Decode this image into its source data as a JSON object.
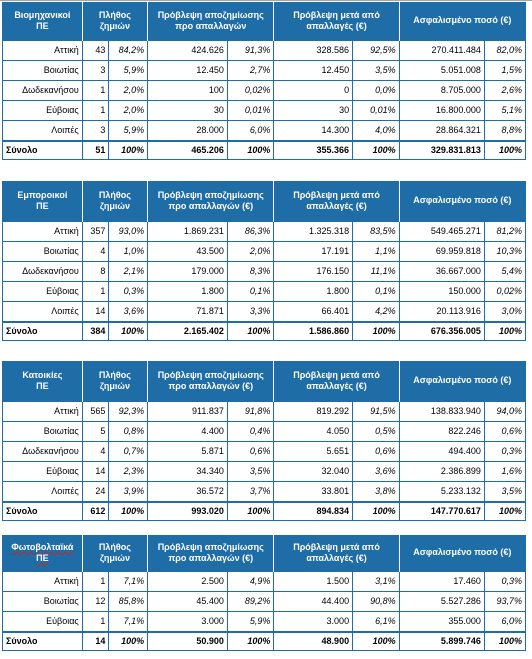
{
  "column_headers": {
    "count": "Πλήθος ζημιών",
    "provision_before": "Πρόβλεψη αποζημίωσης προ απαλλαγών",
    "provision_before_eur": "Πρόβλεψη αποζημίωσης προ απαλλαγών (€)",
    "provision_after": "Πρόβλεψη μετά από απαλλαγές (€)",
    "insured": "Ασφαλισμένο ποσό (€)"
  },
  "tables": [
    {
      "category": [
        "Βιομηχανικοί",
        "ΠΕ"
      ],
      "provision_header_key": "provision_before",
      "rows": [
        {
          "region": "Αττική",
          "count": "43",
          "count_pct": "84,2%",
          "prov": "424.626",
          "prov_pct": "91,3%",
          "after": "328.586",
          "after_pct": "92,5%",
          "insured": "270.411.484",
          "insured_pct": "82,0%"
        },
        {
          "region": "Βοιωτίας",
          "count": "3",
          "count_pct": "5,9%",
          "prov": "12.450",
          "prov_pct": "2,7%",
          "after": "12.450",
          "after_pct": "3,5%",
          "insured": "5.051.008",
          "insured_pct": "1,5%"
        },
        {
          "region": "Δωδεκανήσου",
          "count": "1",
          "count_pct": "2,0%",
          "prov": "100",
          "prov_pct": "0,02%",
          "after": "0",
          "after_pct": "0,0%",
          "insured": "8.705.000",
          "insured_pct": "2,6%"
        },
        {
          "region": "Εύβοιας",
          "count": "1",
          "count_pct": "2,0%",
          "prov": "30",
          "prov_pct": "0,01%",
          "after": "30",
          "after_pct": "0,01%",
          "insured": "16.800.000",
          "insured_pct": "5,1%"
        },
        {
          "region": "Λοιπές",
          "count": "3",
          "count_pct": "5,9%",
          "prov": "28.000",
          "prov_pct": "6,0%",
          "after": "14.300",
          "after_pct": "4,0%",
          "insured": "28.864.321",
          "insured_pct": "8,8%"
        }
      ],
      "total": {
        "label": "Σύνολο",
        "count": "51",
        "count_pct": "100%",
        "prov": "465.206",
        "prov_pct": "100%",
        "after": "355.366",
        "after_pct": "100%",
        "insured": "329.831.813",
        "insured_pct": "100%"
      }
    },
    {
      "category": [
        "Εμποροικοί",
        "ΠΕ"
      ],
      "provision_header_key": "provision_before_eur",
      "rows": [
        {
          "region": "Αττική",
          "count": "357",
          "count_pct": "93,0%",
          "prov": "1.869.231",
          "prov_pct": "86,3%",
          "after": "1.325.318",
          "after_pct": "83,5%",
          "insured": "549.465.271",
          "insured_pct": "81,2%"
        },
        {
          "region": "Βοιωτίας",
          "count": "4",
          "count_pct": "1,0%",
          "prov": "43.500",
          "prov_pct": "2,0%",
          "after": "17.191",
          "after_pct": "1,1%",
          "insured": "69.959.818",
          "insured_pct": "10,3%"
        },
        {
          "region": "Δωδεκανήσου",
          "count": "8",
          "count_pct": "2,1%",
          "prov": "179.000",
          "prov_pct": "8,3%",
          "after": "176.150",
          "after_pct": "11,1%",
          "insured": "36.667.000",
          "insured_pct": "5,4%"
        },
        {
          "region": "Εύβοιας",
          "count": "1",
          "count_pct": "0,3%",
          "prov": "1.800",
          "prov_pct": "0,1%",
          "after": "1.800",
          "after_pct": "0,1%",
          "insured": "150.000",
          "insured_pct": "0,02%"
        },
        {
          "region": "Λοιπές",
          "count": "14",
          "count_pct": "3,6%",
          "prov": "71.871",
          "prov_pct": "3,3%",
          "after": "66.401",
          "after_pct": "4,2%",
          "insured": "20.113.916",
          "insured_pct": "3,0%"
        }
      ],
      "total": {
        "label": "Σύνολο",
        "count": "384",
        "count_pct": "100%",
        "prov": "2.165.402",
        "prov_pct": "100%",
        "after": "1.586.860",
        "after_pct": "100%",
        "insured": "676.356.005",
        "insured_pct": "100%"
      }
    },
    {
      "category": [
        "Κατοικίες",
        "ΠΕ"
      ],
      "provision_header_key": "provision_before_eur",
      "rows": [
        {
          "region": "Αττική",
          "count": "565",
          "count_pct": "92,3%",
          "prov": "911.837",
          "prov_pct": "91,8%",
          "after": "819.292",
          "after_pct": "91,5%",
          "insured": "138.833.940",
          "insured_pct": "94,0%"
        },
        {
          "region": "Βοιωτίας",
          "count": "5",
          "count_pct": "0,8%",
          "prov": "4.400",
          "prov_pct": "0,4%",
          "after": "4.050",
          "after_pct": "0,5%",
          "insured": "822.246",
          "insured_pct": "0,6%"
        },
        {
          "region": "Δωδεκανήσου",
          "count": "4",
          "count_pct": "0,7%",
          "prov": "5.871",
          "prov_pct": "0,6%",
          "after": "5.651",
          "after_pct": "0,6%",
          "insured": "494.400",
          "insured_pct": "0,3%"
        },
        {
          "region": "Εύβοιας",
          "count": "14",
          "count_pct": "2,3%",
          "prov": "34.340",
          "prov_pct": "3,5%",
          "after": "32.040",
          "after_pct": "3,6%",
          "insured": "2.386.899",
          "insured_pct": "1,6%"
        },
        {
          "region": "Λοιπές",
          "count": "24",
          "count_pct": "3,9%",
          "prov": "36.572",
          "prov_pct": "3,7%",
          "after": "33.801",
          "after_pct": "3,8%",
          "insured": "5.233.132",
          "insured_pct": "3,5%"
        }
      ],
      "total": {
        "label": "Σύνολο",
        "count": "612",
        "count_pct": "100%",
        "prov": "993.020",
        "prov_pct": "100%",
        "after": "894.834",
        "after_pct": "100%",
        "insured": "147.770.617",
        "insured_pct": "100%"
      }
    },
    {
      "category": [
        "Φωτοβολταϊκά",
        "ΠΕ"
      ],
      "provision_header_key": "provision_before_eur",
      "rows": [
        {
          "region": "Αττική",
          "count": "1",
          "count_pct": "7,1%",
          "prov": "2.500",
          "prov_pct": "4,9%",
          "after": "1.500",
          "after_pct": "3,1%",
          "insured": "17.460",
          "insured_pct": "0,3%"
        },
        {
          "region": "Βοιωτίας",
          "count": "12",
          "count_pct": "85,8%",
          "prov": "45.400",
          "prov_pct": "89,2%",
          "after": "44.400",
          "after_pct": "90,8%",
          "insured": "5.527.286",
          "insured_pct": "93,7%"
        },
        {
          "region": "Εύβοιας",
          "count": "1",
          "count_pct": "7,1%",
          "prov": "3.000",
          "prov_pct": "5,9%",
          "after": "3.000",
          "after_pct": "6,1%",
          "insured": "355.000",
          "insured_pct": "6,0%"
        }
      ],
      "total": {
        "label": "Σύνολο",
        "count": "14",
        "count_pct": "100%",
        "prov": "50.900",
        "prov_pct": "100%",
        "after": "48.900",
        "after_pct": "100%",
        "insured": "5.899.746",
        "insured_pct": "100%"
      }
    }
  ]
}
